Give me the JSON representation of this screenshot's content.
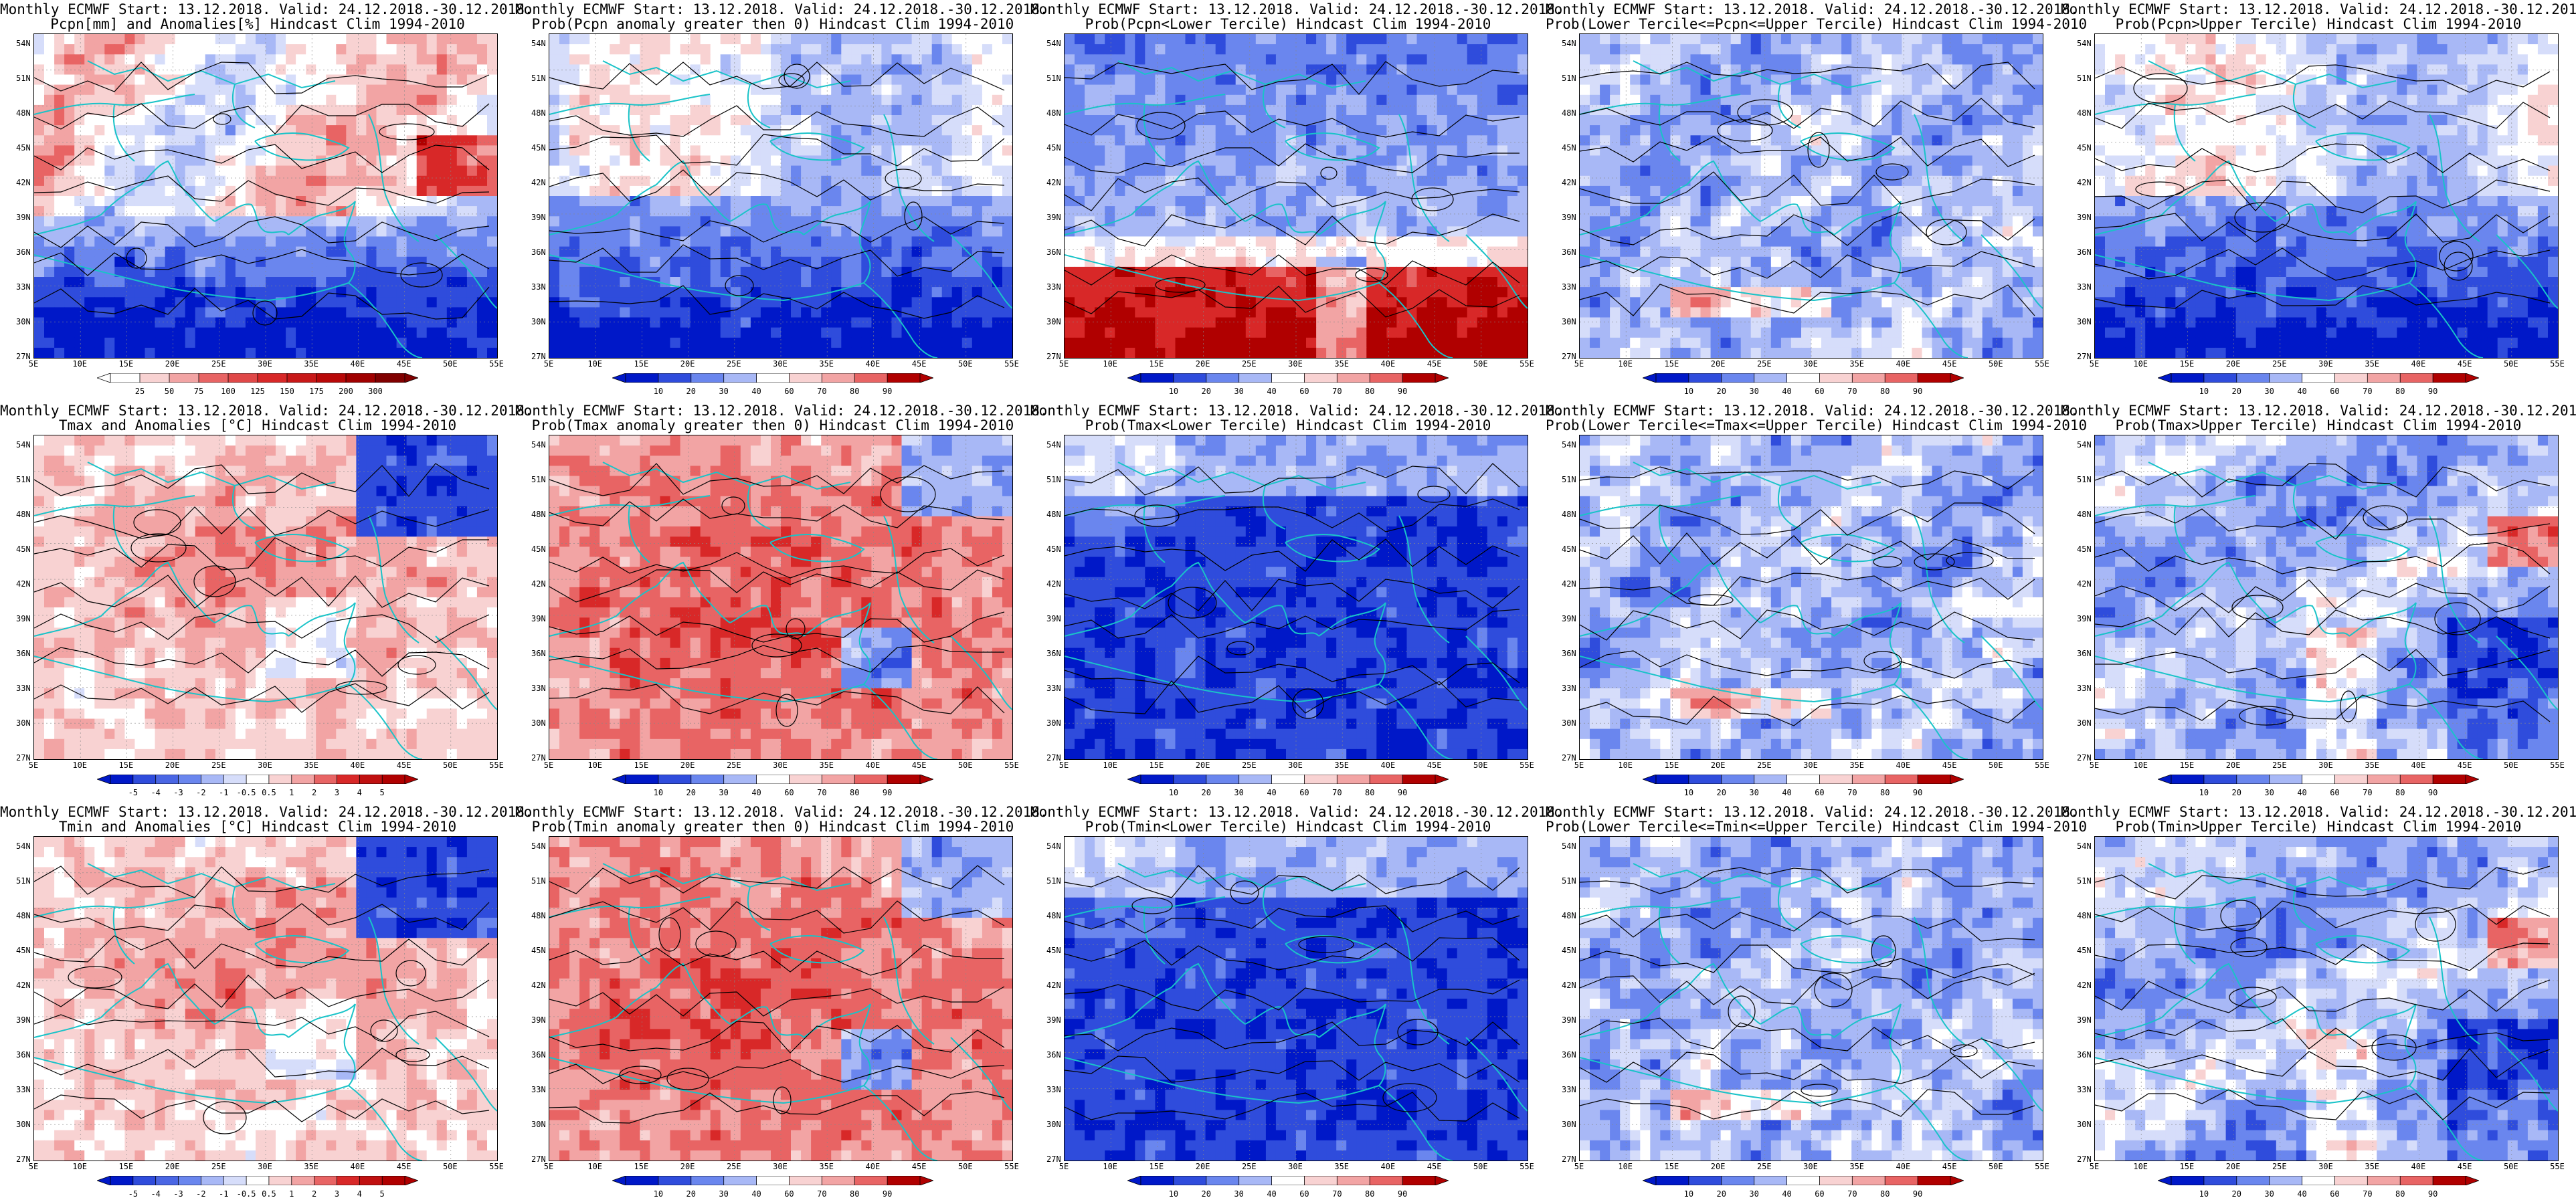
{
  "title_line1": "Monthly ECMWF Start: 13.12.2018. Valid: 24.12.2018.-30.12.2018.",
  "lat_labels": [
    "54N",
    "51N",
    "48N",
    "45N",
    "42N",
    "39N",
    "36N",
    "33N",
    "30N",
    "27N"
  ],
  "lon_labels": [
    "5E",
    "10E",
    "15E",
    "20E",
    "25E",
    "30E",
    "35E",
    "40E",
    "45E",
    "50E",
    "55E"
  ],
  "colors": {
    "coast": "#19c3c8",
    "contour": "#000000",
    "white": "#ffffff",
    "blue_scale": [
      "#0018c8",
      "#2f4cdc",
      "#6a86ee",
      "#a8b8f6",
      "#d6ddfa"
    ],
    "red_scale": [
      "#f8d2d2",
      "#f2a4a4",
      "#e86464",
      "#d82828",
      "#b00000"
    ]
  },
  "colorbars": {
    "precip_anom": [
      "25",
      "50",
      "75",
      "100",
      "125",
      "150",
      "175",
      "200",
      "300"
    ],
    "prob": [
      "10",
      "20",
      "30",
      "40",
      "60",
      "70",
      "80",
      "90"
    ],
    "temp_anom": [
      "-5",
      "-4",
      "-3",
      "-2",
      "-1",
      "-0.5",
      "0.5",
      "1",
      "2",
      "3",
      "4",
      "5"
    ]
  },
  "panels": [
    {
      "id": "pcpn-anom",
      "title2": "Pcpn[mm] and Anomalies[%] Hindcast Clim 1994-2010",
      "bar": "precip_anom",
      "field": "wet-north-dry-south"
    },
    {
      "id": "pcpn-gt0",
      "title2": "Prob(Pcpn anomaly greater then 0) Hindcast Clim 1994-2010",
      "bar": "prob",
      "field": "blue-south"
    },
    {
      "id": "pcpn-lower",
      "title2": "Prob(Pcpn<Lower Tercile) Hindcast Clim 1994-2010",
      "bar": "prob",
      "field": "blue-north-red-south"
    },
    {
      "id": "pcpn-middle",
      "title2": "Prob(Lower Tercile<=Pcpn<=Upper Tercile) Hindcast Clim 1994-2010",
      "bar": "prob",
      "field": "mixed-blue"
    },
    {
      "id": "pcpn-upper",
      "title2": "Prob(Pcpn>Upper Tercile) Hindcast Clim 1994-2010",
      "bar": "prob",
      "field": "blue-south"
    },
    {
      "id": "tmax-anom",
      "title2": "Tmax and Anomalies [°C] Hindcast Clim 1994-2010",
      "bar": "temp_anom",
      "field": "warm-center-cold-ne"
    },
    {
      "id": "tmax-gt0",
      "title2": "Prob(Tmax anomaly greater then 0) Hindcast Clim 1994-2010",
      "bar": "prob",
      "field": "red-heavy"
    },
    {
      "id": "tmax-lower",
      "title2": "Prob(Tmax<Lower Tercile) Hindcast Clim 1994-2010",
      "bar": "prob",
      "field": "deep-blue"
    },
    {
      "id": "tmax-middle",
      "title2": "Prob(Lower Tercile<=Tmax<=Upper Tercile) Hindcast Clim 1994-2010",
      "bar": "prob",
      "field": "mixed-blue"
    },
    {
      "id": "tmax-upper",
      "title2": "Prob(Tmax>Upper Tercile) Hindcast Clim 1994-2010",
      "bar": "prob",
      "field": "blue-with-red"
    },
    {
      "id": "tmin-anom",
      "title2": "Tmin and Anomalies [°C] Hindcast Clim 1994-2010",
      "bar": "temp_anom",
      "field": "warm-center-cold-ne"
    },
    {
      "id": "tmin-gt0",
      "title2": "Prob(Tmin anomaly greater then 0) Hindcast Clim 1994-2010",
      "bar": "prob",
      "field": "red-heavy"
    },
    {
      "id": "tmin-lower",
      "title2": "Prob(Tmin<Lower Tercile) Hindcast Clim 1994-2010",
      "bar": "prob",
      "field": "deep-blue"
    },
    {
      "id": "tmin-middle",
      "title2": "Prob(Lower Tercile<=Tmin<=Upper Tercile) Hindcast Clim 1994-2010",
      "bar": "prob",
      "field": "mixed-blue"
    },
    {
      "id": "tmin-upper",
      "title2": "Prob(Tmin>Upper Tercile) Hindcast Clim 1994-2010",
      "bar": "prob",
      "field": "blue-with-red"
    }
  ]
}
